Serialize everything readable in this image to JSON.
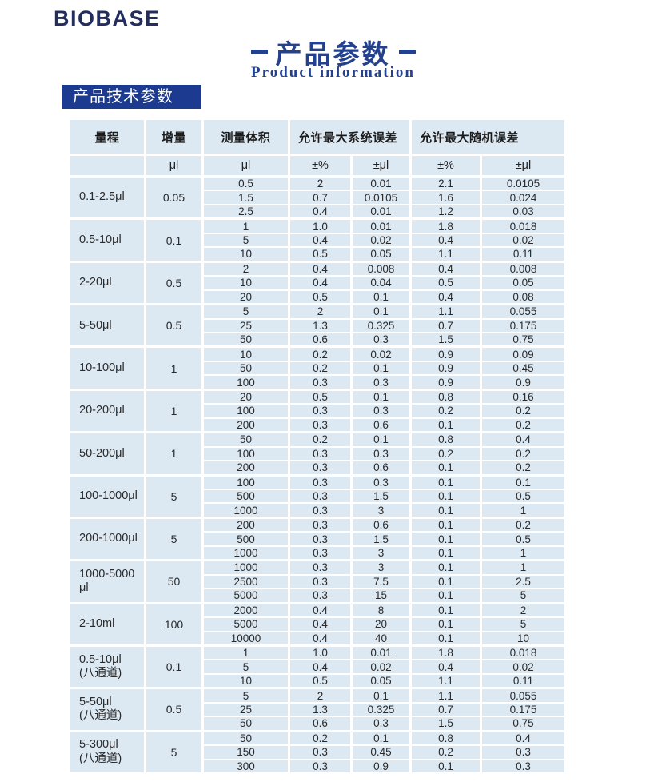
{
  "page": {
    "logo": "BIOBASE",
    "title_cn": "产品参数",
    "title_en": "Product information",
    "section_title": "产品技术参数"
  },
  "colors": {
    "navy": "#24418e",
    "badge_navy": "#1c3a8f",
    "logo_navy": "#232e5f",
    "cell_bg": "#dce8f2",
    "text_dark": "#2a2a2a"
  },
  "table": {
    "header": {
      "range": "量程",
      "increment": "增量",
      "volume": "测量体积",
      "systematic_error": "允许最大系统误差",
      "random_error": "允许最大随机误差"
    },
    "units": {
      "range": "",
      "increment": "μl",
      "volume": "μl",
      "sys_pct": "±%",
      "sys_ul": "±μl",
      "rand_pct": "±%",
      "rand_ul": "±μl"
    },
    "groups": [
      {
        "range_lines": [
          "0.1-2.5μl"
        ],
        "increment": "0.05",
        "rows": [
          [
            "0.5",
            "2",
            "0.01",
            "2.1",
            "0.0105"
          ],
          [
            "1.5",
            "0.7",
            "0.0105",
            "1.6",
            "0.024"
          ],
          [
            "2.5",
            "0.4",
            "0.01",
            "1.2",
            "0.03"
          ]
        ]
      },
      {
        "range_lines": [
          "0.5-10μl"
        ],
        "increment": "0.1",
        "rows": [
          [
            "1",
            "1.0",
            "0.01",
            "1.8",
            "0.018"
          ],
          [
            "5",
            "0.4",
            "0.02",
            "0.4",
            "0.02"
          ],
          [
            "10",
            "0.5",
            "0.05",
            "1.1",
            "0.11"
          ]
        ]
      },
      {
        "range_lines": [
          "2-20μl"
        ],
        "increment": "0.5",
        "rows": [
          [
            "2",
            "0.4",
            "0.008",
            "0.4",
            "0.008"
          ],
          [
            "10",
            "0.4",
            "0.04",
            "0.5",
            "0.05"
          ],
          [
            "20",
            "0.5",
            "0.1",
            "0.4",
            "0.08"
          ]
        ]
      },
      {
        "range_lines": [
          "5-50μl"
        ],
        "increment": "0.5",
        "rows": [
          [
            "5",
            "2",
            "0.1",
            "1.1",
            "0.055"
          ],
          [
            "25",
            "1.3",
            "0.325",
            "0.7",
            "0.175"
          ],
          [
            "50",
            "0.6",
            "0.3",
            "1.5",
            "0.75"
          ]
        ]
      },
      {
        "range_lines": [
          "10-100μl"
        ],
        "increment": "1",
        "rows": [
          [
            "10",
            "0.2",
            "0.02",
            "0.9",
            "0.09"
          ],
          [
            "50",
            "0.2",
            "0.1",
            "0.9",
            "0.45"
          ],
          [
            "100",
            "0.3",
            "0.3",
            "0.9",
            "0.9"
          ]
        ]
      },
      {
        "range_lines": [
          "20-200μl"
        ],
        "increment": "1",
        "rows": [
          [
            "20",
            "0.5",
            "0.1",
            "0.8",
            "0.16"
          ],
          [
            "100",
            "0.3",
            "0.3",
            "0.2",
            "0.2"
          ],
          [
            "200",
            "0.3",
            "0.6",
            "0.1",
            "0.2"
          ]
        ]
      },
      {
        "range_lines": [
          "50-200μl"
        ],
        "increment": "1",
        "rows": [
          [
            "50",
            "0.2",
            "0.1",
            "0.8",
            "0.4"
          ],
          [
            "100",
            "0.3",
            "0.3",
            "0.2",
            "0.2"
          ],
          [
            "200",
            "0.3",
            "0.6",
            "0.1",
            "0.2"
          ]
        ]
      },
      {
        "range_lines": [
          "100-1000μl"
        ],
        "increment": "5",
        "rows": [
          [
            "100",
            "0.3",
            "0.3",
            "0.1",
            "0.1"
          ],
          [
            "500",
            "0.3",
            "1.5",
            "0.1",
            "0.5"
          ],
          [
            "1000",
            "0.3",
            "3",
            "0.1",
            "1"
          ]
        ]
      },
      {
        "range_lines": [
          "200-1000μl"
        ],
        "increment": "5",
        "rows": [
          [
            "200",
            "0.3",
            "0.6",
            "0.1",
            "0.2"
          ],
          [
            "500",
            "0.3",
            "1.5",
            "0.1",
            "0.5"
          ],
          [
            "1000",
            "0.3",
            "3",
            "0.1",
            "1"
          ]
        ]
      },
      {
        "range_lines": [
          "1000-5000",
          "μl"
        ],
        "increment": "50",
        "rows": [
          [
            "1000",
            "0.3",
            "3",
            "0.1",
            "1"
          ],
          [
            "2500",
            "0.3",
            "7.5",
            "0.1",
            "2.5"
          ],
          [
            "5000",
            "0.3",
            "15",
            "0.1",
            "5"
          ]
        ]
      },
      {
        "range_lines": [
          "2-10ml"
        ],
        "increment": "100",
        "rows": [
          [
            "2000",
            "0.4",
            "8",
            "0.1",
            "2"
          ],
          [
            "5000",
            "0.4",
            "20",
            "0.1",
            "5"
          ],
          [
            "10000",
            "0.4",
            "40",
            "0.1",
            "10"
          ]
        ]
      },
      {
        "range_lines": [
          "0.5-10μl",
          "(八通道)"
        ],
        "increment": "0.1",
        "rows": [
          [
            "1",
            "1.0",
            "0.01",
            "1.8",
            "0.018"
          ],
          [
            "5",
            "0.4",
            "0.02",
            "0.4",
            "0.02"
          ],
          [
            "10",
            "0.5",
            "0.05",
            "1.1",
            "0.11"
          ]
        ]
      },
      {
        "range_lines": [
          "5-50μl",
          "(八通道)"
        ],
        "increment": "0.5",
        "rows": [
          [
            "5",
            "2",
            "0.1",
            "1.1",
            "0.055"
          ],
          [
            "25",
            "1.3",
            "0.325",
            "0.7",
            "0.175"
          ],
          [
            "50",
            "0.6",
            "0.3",
            "1.5",
            "0.75"
          ]
        ]
      },
      {
        "range_lines": [
          "5-300μl",
          "(八通道)"
        ],
        "increment": "5",
        "rows": [
          [
            "50",
            "0.2",
            "0.1",
            "0.8",
            "0.4"
          ],
          [
            "150",
            "0.3",
            "0.45",
            "0.2",
            "0.3"
          ],
          [
            "300",
            "0.3",
            "0.9",
            "0.1",
            "0.3"
          ]
        ]
      }
    ]
  }
}
